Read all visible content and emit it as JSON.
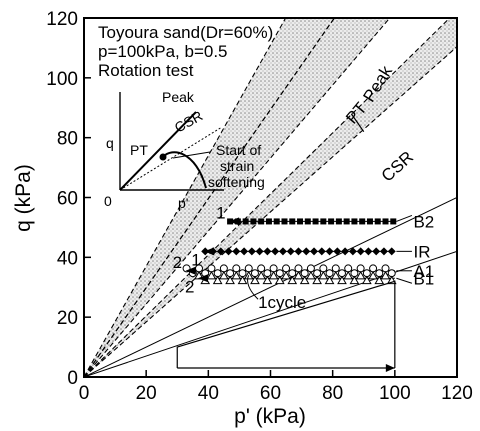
{
  "chart_data": {
    "type": "scatter",
    "xlabel": "p' (kPa)",
    "ylabel": "q (kPa)",
    "xlim": [
      0,
      120
    ],
    "ylim": [
      0,
      120
    ],
    "xticks": [
      0,
      20,
      40,
      60,
      80,
      100,
      120
    ],
    "yticks": [
      0,
      20,
      40,
      60,
      80,
      100,
      120
    ],
    "grid": false,
    "notes": [
      "Toyoura sand(Dr=60%)",
      "p=100kPa, b=0.5",
      "Rotation test"
    ],
    "envelopes": [
      {
        "name": "Peak",
        "slopes": [
          1.85,
          1.49
        ]
      },
      {
        "name": "PT",
        "slopes": [
          1.49,
          1.22
        ]
      },
      {
        "name": "CSR",
        "slopes": [
          1.02,
          0.92
        ]
      }
    ],
    "extra_lines": [
      {
        "slope": 0.5
      },
      {
        "slope": 0.35
      }
    ],
    "series": [
      {
        "name": "B2",
        "marker": "square-filled",
        "y": 52,
        "x_range": [
          47,
          100
        ],
        "start_label": "1"
      },
      {
        "name": "IR",
        "marker": "diamond-filled",
        "y": 42,
        "x_range": [
          39,
          100
        ],
        "start_label": "1"
      },
      {
        "name": "A1",
        "marker": "circle-open",
        "y": 35.5,
        "x_range": [
          33,
          100
        ],
        "start_label": "2"
      },
      {
        "name": "B1",
        "marker": "triangle-open",
        "y": 33,
        "x_range": [
          37,
          100
        ],
        "start_label": "2"
      }
    ],
    "cycle_annotation": "1cycle",
    "path_diagram": {
      "x_start": 30,
      "x_end": 100,
      "y_bottom": 3,
      "y_top": 10
    },
    "inset": {
      "labels": [
        "Peak",
        "CSR",
        "PT",
        "Start of",
        "strain",
        "softening"
      ],
      "xlabel": "p'",
      "ylabel": "q",
      "origin": "0"
    }
  }
}
